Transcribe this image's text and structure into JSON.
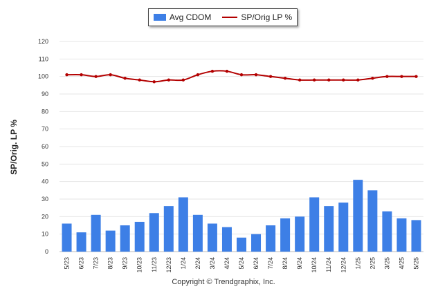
{
  "chart_data": {
    "type": "bar+line",
    "categories": [
      "5/23",
      "6/23",
      "7/23",
      "8/23",
      "9/23",
      "10/23",
      "11/23",
      "12/23",
      "1/24",
      "2/24",
      "3/24",
      "4/24",
      "5/24",
      "6/24",
      "7/24",
      "8/24",
      "9/24",
      "10/24",
      "11/24",
      "12/24",
      "1/25",
      "2/25",
      "3/25",
      "4/25",
      "5/25"
    ],
    "series": [
      {
        "name": "Avg CDOM",
        "type": "bar",
        "color": "#3d7fe6",
        "values": [
          16,
          11,
          21,
          12,
          15,
          17,
          22,
          26,
          31,
          21,
          16,
          14,
          8,
          10,
          15,
          19,
          20,
          31,
          26,
          28,
          41,
          35,
          23,
          19,
          18
        ]
      },
      {
        "name": "SP/Orig LP %",
        "type": "line",
        "color": "#b30000",
        "values": [
          101,
          101,
          100,
          101,
          99,
          98,
          97,
          98,
          98,
          101,
          103,
          103,
          101,
          101,
          100,
          99,
          98,
          98,
          98,
          98,
          98,
          99,
          100,
          100,
          100
        ]
      }
    ],
    "ylabel": "SP/Orig. LP %",
    "ylim": [
      0,
      120
    ],
    "yticks": [
      0,
      10,
      20,
      30,
      40,
      50,
      60,
      70,
      80,
      90,
      100,
      110,
      120
    ],
    "grid": true,
    "legend": "top-center"
  },
  "footer": "Copyright © Trendgraphix, Inc."
}
